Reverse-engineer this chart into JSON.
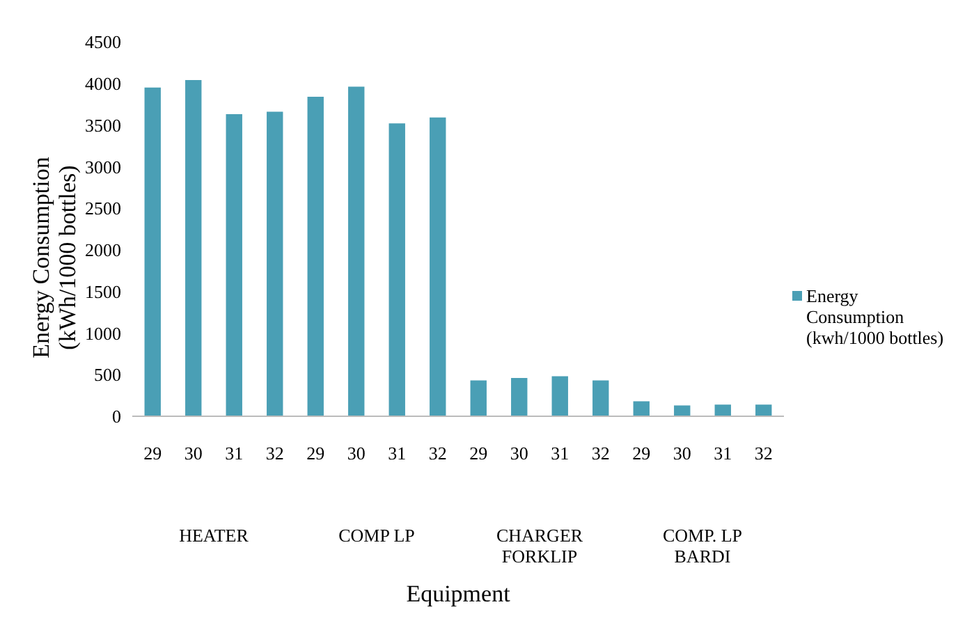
{
  "chart_data": {
    "type": "bar",
    "xlabel": "Equipment",
    "ylabel": "Energy Consumption (kWh/1000 bottles)",
    "categories": [
      "29",
      "30",
      "31",
      "32",
      "29",
      "30",
      "31",
      "32",
      "29",
      "30",
      "31",
      "32",
      "29",
      "30",
      "31",
      "32"
    ],
    "series": [
      {
        "name": "Energy Consumption (kwh/1000 bottles)",
        "color": "#4a9fb5",
        "values": [
          3950,
          4040,
          3630,
          3660,
          3840,
          3960,
          3520,
          3590,
          430,
          460,
          480,
          430,
          180,
          130,
          140,
          140
        ]
      }
    ],
    "annotations": [
      "HEATER",
      "COMP LP",
      "CHARGER FORKLIP",
      "COMP. LP BARDI"
    ],
    "ylim": [
      0,
      4500
    ],
    "yticks": [
      0,
      500,
      1000,
      1500,
      2000,
      2500,
      3000,
      3500,
      4000,
      4500
    ],
    "grid": false,
    "legend": "right"
  }
}
